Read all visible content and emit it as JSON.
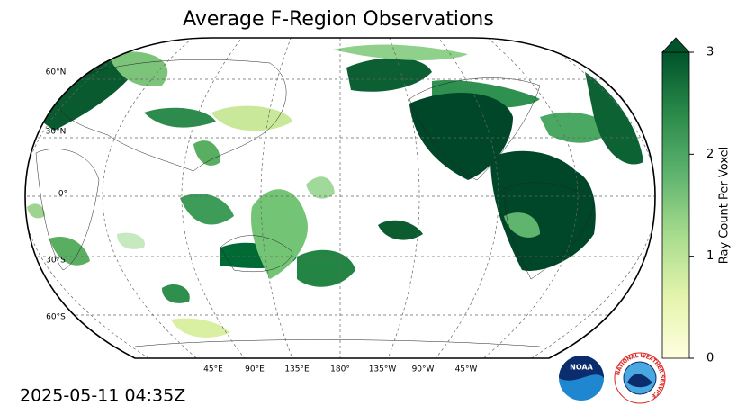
{
  "title": "Average F-Region Observations",
  "map": {
    "lat_labels": [
      "60°N",
      "30°N",
      "0°",
      "30°S",
      "60°S"
    ],
    "lon_labels": [
      "45°E",
      "90°E",
      "135°E",
      "180°",
      "135°W",
      "90°W",
      "45°W"
    ]
  },
  "colorbar": {
    "label": "Ray Count Per Voxel",
    "range": [
      0,
      3
    ],
    "ticks": [
      0,
      1,
      2,
      3
    ],
    "extend": "max",
    "colors": [
      "#ffffe0",
      "#e4f4ac",
      "#a8dc8e",
      "#5fb46e",
      "#2a8a4a",
      "#00532a"
    ]
  },
  "timestamp": "2025-05-11 04:35Z",
  "logos": [
    "NOAA",
    "NATIONAL WEATHER SERVICE"
  ]
}
